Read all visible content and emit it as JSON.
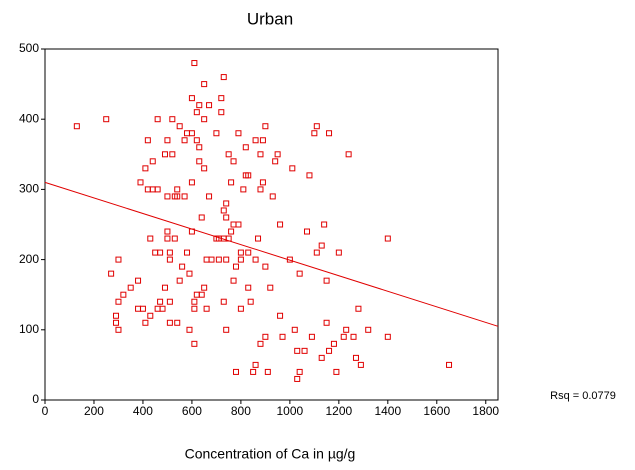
{
  "chart_data": {
    "type": "scatter",
    "title": "Urban",
    "x_label": "Concentration of Ca in µg/g",
    "annotation": "Rsq = 0.0779",
    "color": "#e00000",
    "xlim": [
      0,
      1850
    ],
    "ylim": [
      0,
      500
    ],
    "xticks": [
      0,
      200,
      400,
      600,
      800,
      1000,
      1200,
      1400,
      1600,
      1800
    ],
    "yticks": [
      0,
      100,
      200,
      300,
      400,
      500
    ],
    "x": [
      130,
      250,
      270,
      290,
      290,
      300,
      300,
      300,
      320,
      350,
      380,
      380,
      390,
      400,
      410,
      410,
      420,
      420,
      430,
      430,
      440,
      440,
      450,
      460,
      460,
      460,
      470,
      470,
      480,
      490,
      490,
      500,
      500,
      500,
      500,
      510,
      510,
      510,
      510,
      520,
      520,
      530,
      530,
      540,
      540,
      540,
      550,
      550,
      560,
      570,
      570,
      580,
      580,
      590,
      590,
      600,
      600,
      600,
      600,
      610,
      610,
      610,
      610,
      620,
      620,
      620,
      630,
      630,
      630,
      640,
      640,
      650,
      650,
      650,
      650,
      660,
      660,
      670,
      670,
      680,
      700,
      700,
      710,
      710,
      720,
      720,
      730,
      730,
      730,
      730,
      740,
      740,
      740,
      740,
      750,
      750,
      760,
      760,
      770,
      770,
      770,
      780,
      780,
      790,
      790,
      800,
      800,
      800,
      810,
      820,
      820,
      830,
      830,
      830,
      840,
      850,
      860,
      860,
      860,
      870,
      880,
      880,
      880,
      890,
      890,
      900,
      900,
      900,
      910,
      920,
      930,
      940,
      950,
      960,
      960,
      970,
      1000,
      1010,
      1020,
      1030,
      1030,
      1040,
      1040,
      1060,
      1070,
      1080,
      1090,
      1100,
      1110,
      1110,
      1130,
      1130,
      1140,
      1150,
      1150,
      1160,
      1160,
      1180,
      1190,
      1200,
      1220,
      1230,
      1240,
      1260,
      1270,
      1280,
      1290,
      1320,
      1400,
      1400,
      1650
    ],
    "values": [
      390,
      400,
      180,
      120,
      110,
      100,
      140,
      200,
      150,
      160,
      130,
      170,
      310,
      130,
      330,
      110,
      370,
      300,
      120,
      230,
      340,
      300,
      210,
      400,
      300,
      130,
      140,
      210,
      130,
      350,
      160,
      230,
      240,
      370,
      290,
      200,
      210,
      140,
      110,
      400,
      350,
      230,
      290,
      290,
      300,
      110,
      390,
      170,
      190,
      370,
      290,
      380,
      210,
      100,
      180,
      430,
      380,
      310,
      240,
      480,
      140,
      130,
      80,
      410,
      370,
      150,
      360,
      420,
      340,
      260,
      150,
      450,
      400,
      330,
      160,
      200,
      130,
      420,
      290,
      200,
      230,
      380,
      230,
      200,
      410,
      430,
      460,
      270,
      230,
      140,
      280,
      260,
      200,
      100,
      350,
      230,
      310,
      240,
      340,
      250,
      170,
      190,
      40,
      250,
      380,
      210,
      200,
      130,
      300,
      320,
      360,
      320,
      210,
      160,
      140,
      40,
      50,
      200,
      370,
      230,
      350,
      300,
      80,
      370,
      310,
      390,
      190,
      90,
      40,
      160,
      290,
      340,
      350,
      250,
      120,
      90,
      200,
      330,
      100,
      70,
      30,
      40,
      180,
      70,
      240,
      320,
      90,
      380,
      390,
      210,
      60,
      220,
      250,
      170,
      110,
      380,
      70,
      80,
      40,
      210,
      90,
      100,
      350,
      90,
      60,
      130,
      50,
      100,
      230,
      90,
      50
    ],
    "fit": {
      "x": [
        0,
        1850
      ],
      "y": [
        310,
        105
      ]
    }
  }
}
